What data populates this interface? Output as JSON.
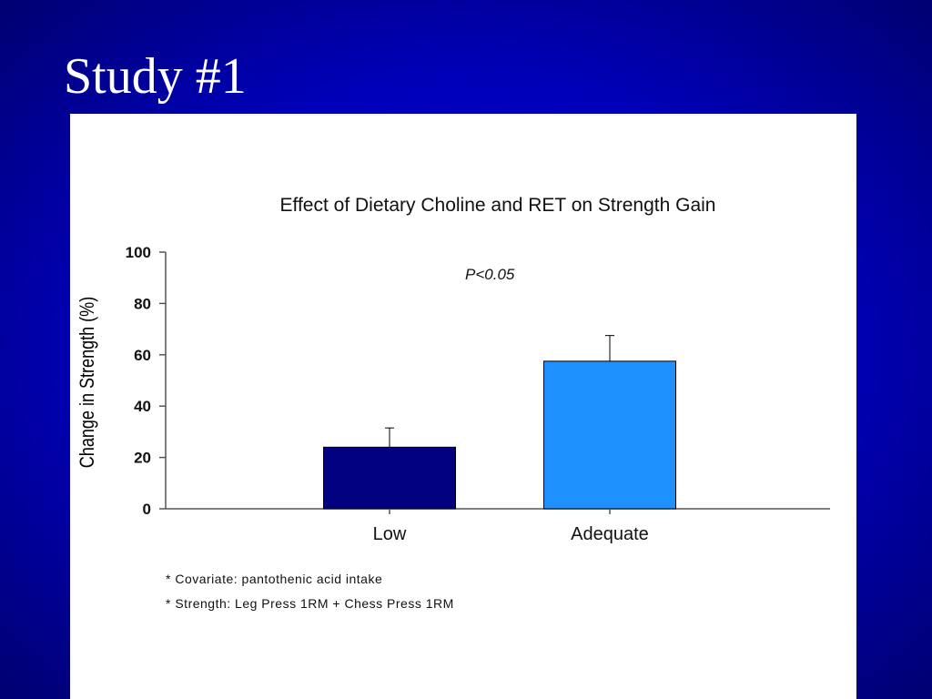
{
  "slide": {
    "title": "Study #1"
  },
  "notes": [
    "* Covariate: pantothenic acid intake",
    "* Strength: Leg Press 1RM + Chess Press 1RM"
  ],
  "chart_data": {
    "type": "bar",
    "title": "Effect of Dietary Choline and RET on Strength Gain",
    "xlabel": "",
    "ylabel": "Change in Strength (%)",
    "categories": [
      "Low",
      "Adequate"
    ],
    "values": [
      24,
      57.5
    ],
    "error_upper": [
      31.5,
      67.5
    ],
    "colors": [
      "#000080",
      "#1e90ff"
    ],
    "ylim": [
      0,
      100
    ],
    "yticks": [
      "0",
      "20",
      "40",
      "60",
      "80",
      "100"
    ],
    "annotation": "P<0.05",
    "grid": false,
    "legend": "none"
  }
}
